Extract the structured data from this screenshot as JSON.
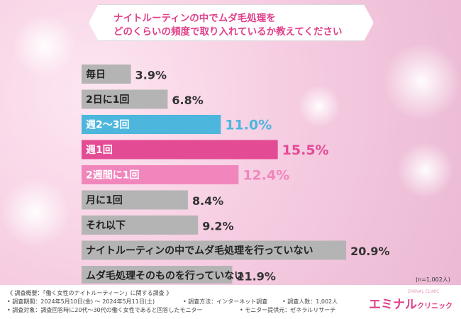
{
  "title": {
    "line1": "ナイトルーティンの中でムダ毛処理を",
    "line2": "どのくらいの頻度で取り入れているか教えてください"
  },
  "colors": {
    "gray": "#b4b4b4",
    "blue": "#4cb6dc",
    "pink": "#e44b95",
    "light_pink": "#f186bd",
    "accent": "#e0408a"
  },
  "chart_data": {
    "type": "bar",
    "orientation": "horizontal",
    "categories": [
      "毎日",
      "2日に1回",
      "週2〜3回",
      "週1回",
      "2週間に1回",
      "月に1回",
      "それ以下",
      "ナイトルーティンの中でムダ毛処理を行っていない",
      "ムダ毛処理そのものを行っていない"
    ],
    "values": [
      3.9,
      6.8,
      11.0,
      15.5,
      12.4,
      8.4,
      9.2,
      20.9,
      11.9
    ],
    "value_labels": [
      "3.9%",
      "6.8%",
      "11.0%",
      "15.5%",
      "12.4%",
      "8.4%",
      "9.2%",
      "20.9%",
      "11.9%"
    ],
    "bar_colors": [
      "gray",
      "gray",
      "blue",
      "pink",
      "light_pink",
      "gray",
      "gray",
      "gray",
      "gray"
    ],
    "label_colors": [
      "gray",
      "gray",
      "blue",
      "pink",
      "light_pink",
      "gray",
      "gray",
      "gray",
      "gray"
    ],
    "unit": "%",
    "xlim": [
      0,
      25
    ]
  },
  "sample_size": "(n=1,002人)",
  "footer": {
    "overview": "《 調査概要：「働く女性のナイトルーティーン」に関する調査 》",
    "period": "• 調査期間：2024年5月10日(金) 〜 2024年5月11日(土)",
    "method": "• 調査方法：インターネット調査",
    "count": "• 調査人数：1,002人",
    "target": "• 調査対象：調査回答時に20代〜30代の働く女性であると回答したモニター",
    "provider": "• モニター提供元：ゼネラルリサーチ"
  },
  "logo": {
    "main": "エミナル",
    "sub": "クリニック",
    "en": "EMINAL CLINIC"
  }
}
